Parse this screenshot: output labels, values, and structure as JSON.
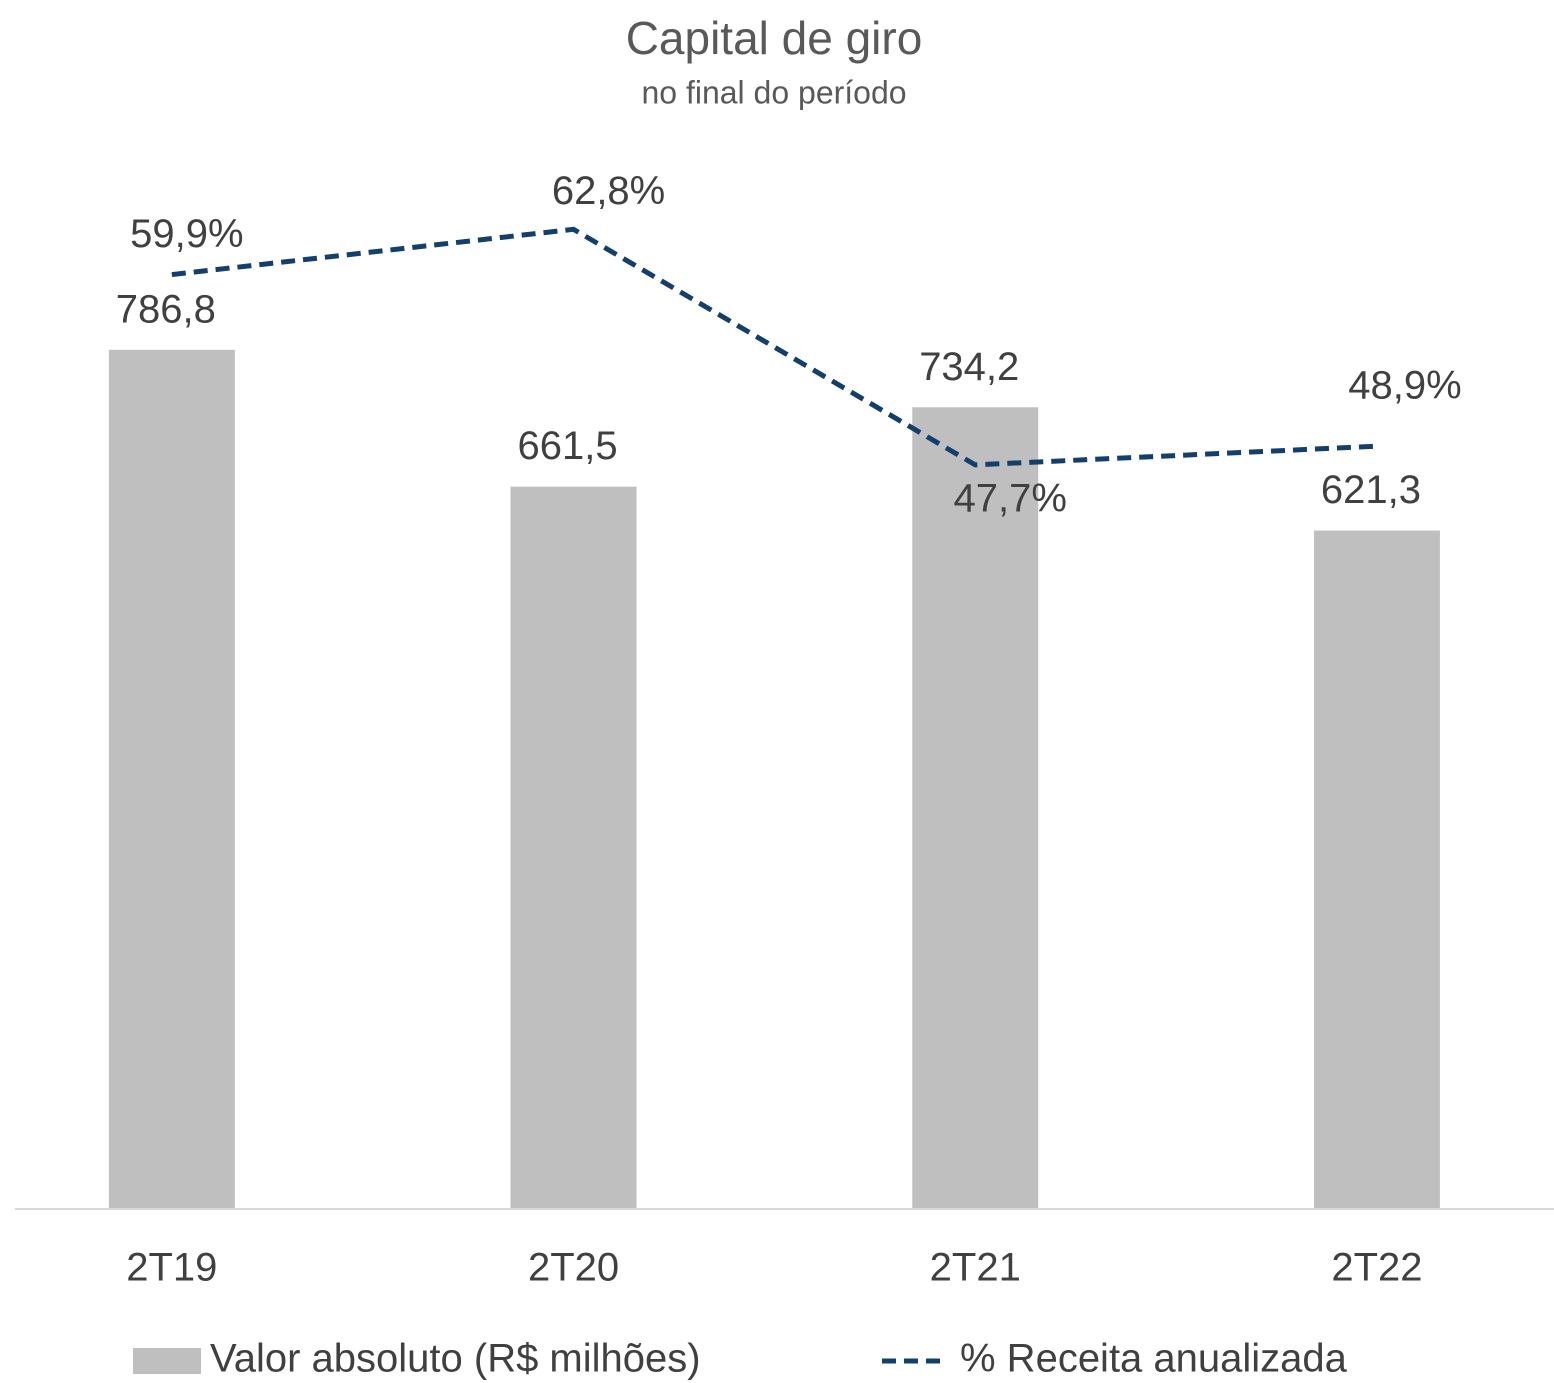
{
  "chart_data": {
    "type": "combo",
    "title": "Capital de giro",
    "subtitle": "no final do período",
    "categories": [
      "2T19",
      "2T20",
      "2T21",
      "2T22"
    ],
    "series": [
      {
        "name": "Valor absoluto (R$ milhões)",
        "type": "bar",
        "color": "#bfbfbf",
        "axis": "y",
        "values": [
          786.8,
          661.5,
          734.2,
          621.3
        ],
        "value_labels": [
          "786,8",
          "661,5",
          "734,2",
          "621,3"
        ]
      },
      {
        "name": "% Receita anualizada",
        "type": "line",
        "color": "#123f6e",
        "axis": "y2",
        "dashed": true,
        "values": [
          59.9,
          62.8,
          47.7,
          48.9
        ],
        "value_labels": [
          "59,9%",
          "62,8%",
          "47,7%",
          "48,9%"
        ]
      }
    ],
    "ylim": [
      0,
      1000
    ],
    "y2lim": [
      0,
      70
    ],
    "grid": false,
    "legend": "bottom"
  }
}
